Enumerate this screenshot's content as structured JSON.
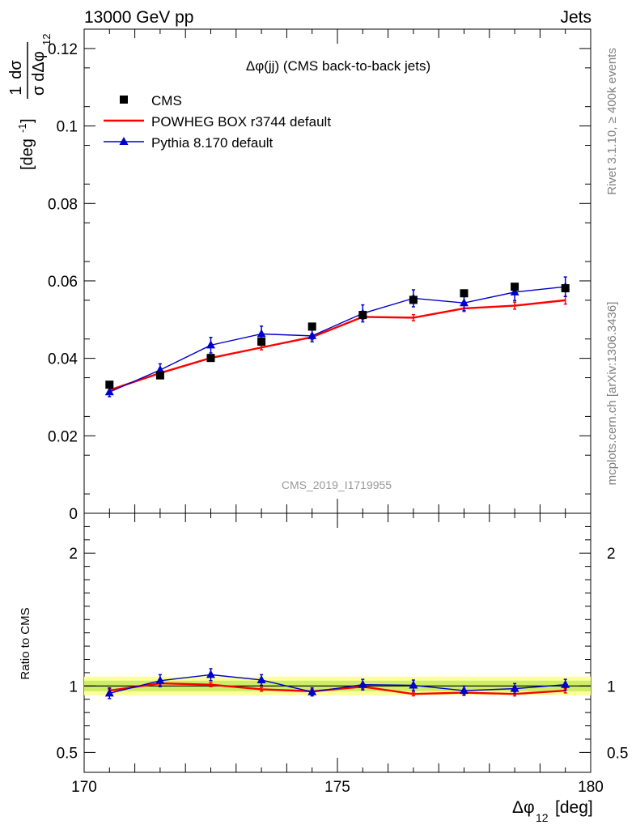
{
  "header": {
    "energy_label": "13000 GeV pp",
    "process_label": "Jets",
    "plot_title": "Δφ(jj) (CMS back-to-back jets)",
    "side_label_top": "Rivet 3.1.10, ≥ 400k events",
    "side_label_bottom": "mcplots.cern.ch [arXiv:1306.3436]",
    "watermark": "CMS_2019_I1719955"
  },
  "chart_data": [
    {
      "type": "line",
      "panel": "main",
      "ylabel": "1/σ dσ/dΔφ12 [deg⁻¹]",
      "xlim": [
        170,
        180
      ],
      "ylim": [
        0,
        0.125
      ],
      "y_ticks": [
        "0",
        "0.02",
        "0.04",
        "0.06",
        "0.08",
        "0.1",
        "0.12"
      ],
      "legend_placement": "top-left",
      "x": [
        170.5,
        171.5,
        172.5,
        173.5,
        174.5,
        175.5,
        176.5,
        177.5,
        178.5,
        179.5
      ],
      "series": [
        {
          "name": "CMS",
          "style": "markers",
          "color": "#000000",
          "values": [
            0.0332,
            0.0356,
            0.0401,
            0.0443,
            0.0482,
            0.0512,
            0.0551,
            0.0568,
            0.0585,
            0.0581
          ]
        },
        {
          "name": "POWHEG BOX r3744 default",
          "style": "line",
          "color": "#ff0000",
          "values": [
            0.0318,
            0.0362,
            0.0401,
            0.0428,
            0.0455,
            0.0507,
            0.0505,
            0.0529,
            0.0536,
            0.055
          ],
          "errors": [
            0.0005,
            0.0006,
            0.0006,
            0.0006,
            0.0007,
            0.0007,
            0.0008,
            0.0008,
            0.0009,
            0.001
          ]
        },
        {
          "name": "Pythia 8.170 default",
          "style": "line-triangles",
          "color": "#0000cc",
          "values": [
            0.0313,
            0.037,
            0.0434,
            0.0463,
            0.0458,
            0.0516,
            0.0555,
            0.0543,
            0.0571,
            0.0585
          ],
          "errors": [
            0.0012,
            0.0016,
            0.002,
            0.002,
            0.0015,
            0.0022,
            0.0022,
            0.002,
            0.0022,
            0.0025
          ]
        }
      ]
    },
    {
      "type": "line",
      "panel": "ratio",
      "xlabel": "Δφ12 [deg]",
      "ylabel": "Ratio to CMS",
      "xlim": [
        170,
        180
      ],
      "ylim": [
        0.35,
        2.3
      ],
      "x_ticks": [
        "170",
        "175",
        "180"
      ],
      "y_ticks": [
        "0.5",
        "1",
        "2"
      ],
      "reference_band": {
        "lower": 0.96,
        "upper": 1.04
      },
      "x": [
        170.5,
        171.5,
        172.5,
        173.5,
        174.5,
        175.5,
        176.5,
        177.5,
        178.5,
        179.5
      ],
      "series": [
        {
          "name": "POWHEG BOX r3744 default",
          "color": "#ff0000",
          "values": [
            0.965,
            1.02,
            1.01,
            0.975,
            0.96,
            0.995,
            0.94,
            0.95,
            0.94,
            0.965
          ],
          "errors": [
            0.012,
            0.015,
            0.015,
            0.014,
            0.014,
            0.014,
            0.014,
            0.014,
            0.015,
            0.017
          ]
        },
        {
          "name": "Pythia 8.170 default",
          "color": "#0000cc",
          "values": [
            0.945,
            1.04,
            1.085,
            1.045,
            0.955,
            1.01,
            1.005,
            0.965,
            0.98,
            1.01
          ],
          "errors": [
            0.04,
            0.045,
            0.045,
            0.04,
            0.03,
            0.04,
            0.04,
            0.035,
            0.038,
            0.04
          ]
        }
      ]
    }
  ]
}
